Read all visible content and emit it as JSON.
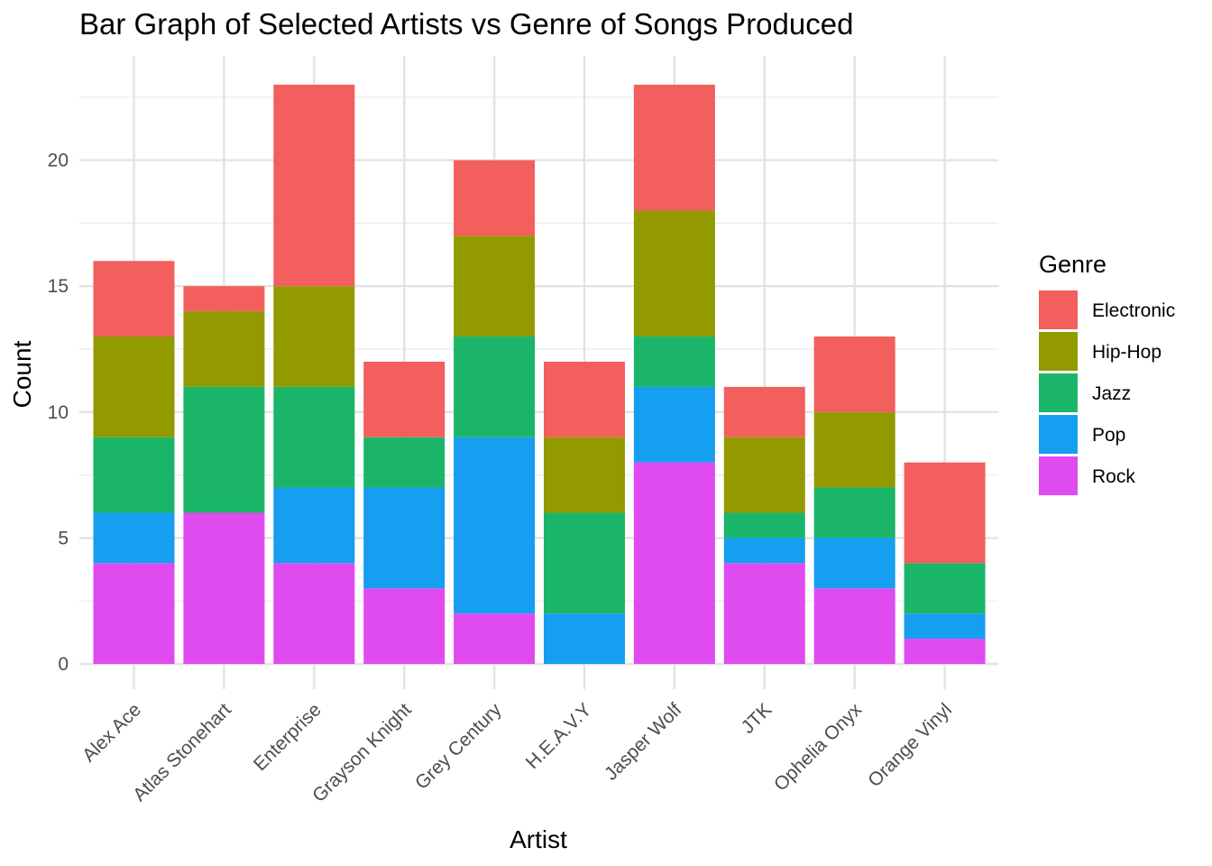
{
  "chart_data": {
    "type": "bar",
    "stacked": true,
    "title": "Bar Graph of Selected Artists vs Genre of Songs Produced",
    "xlabel": "Artist",
    "ylabel": "Count",
    "ylim": [
      0,
      24
    ],
    "yticks": [
      0,
      5,
      10,
      15,
      20
    ],
    "grid": true,
    "legend_position": "right",
    "legend_title": "Genre",
    "categories": [
      "Alex Ace",
      "Atlas Stonehart",
      "Enterprise",
      "Grayson Knight",
      "Grey Century",
      "H.E.A.V.Y",
      "Jasper Wolf",
      "JTK",
      "Ophelia Onyx",
      "Orange Vinyl"
    ],
    "series": [
      {
        "name": "Rock",
        "color": "#E04BF0",
        "values": [
          4,
          6,
          4,
          3,
          2,
          0,
          8,
          4,
          3,
          1
        ]
      },
      {
        "name": "Pop",
        "color": "#169EF0",
        "values": [
          2,
          0,
          3,
          4,
          7,
          2,
          3,
          1,
          2,
          1
        ]
      },
      {
        "name": "Jazz",
        "color": "#1BB56A",
        "values": [
          3,
          5,
          4,
          2,
          4,
          4,
          2,
          1,
          2,
          2
        ]
      },
      {
        "name": "Hip-Hop",
        "color": "#929A00",
        "values": [
          4,
          3,
          4,
          0,
          4,
          3,
          5,
          3,
          3,
          0
        ]
      },
      {
        "name": "Electronic",
        "color": "#F25F5C",
        "values": [
          3,
          1,
          8,
          3,
          3,
          3,
          5,
          2,
          3,
          4
        ]
      }
    ],
    "legend_order": [
      "Electronic",
      "Hip-Hop",
      "Jazz",
      "Pop",
      "Rock"
    ]
  }
}
